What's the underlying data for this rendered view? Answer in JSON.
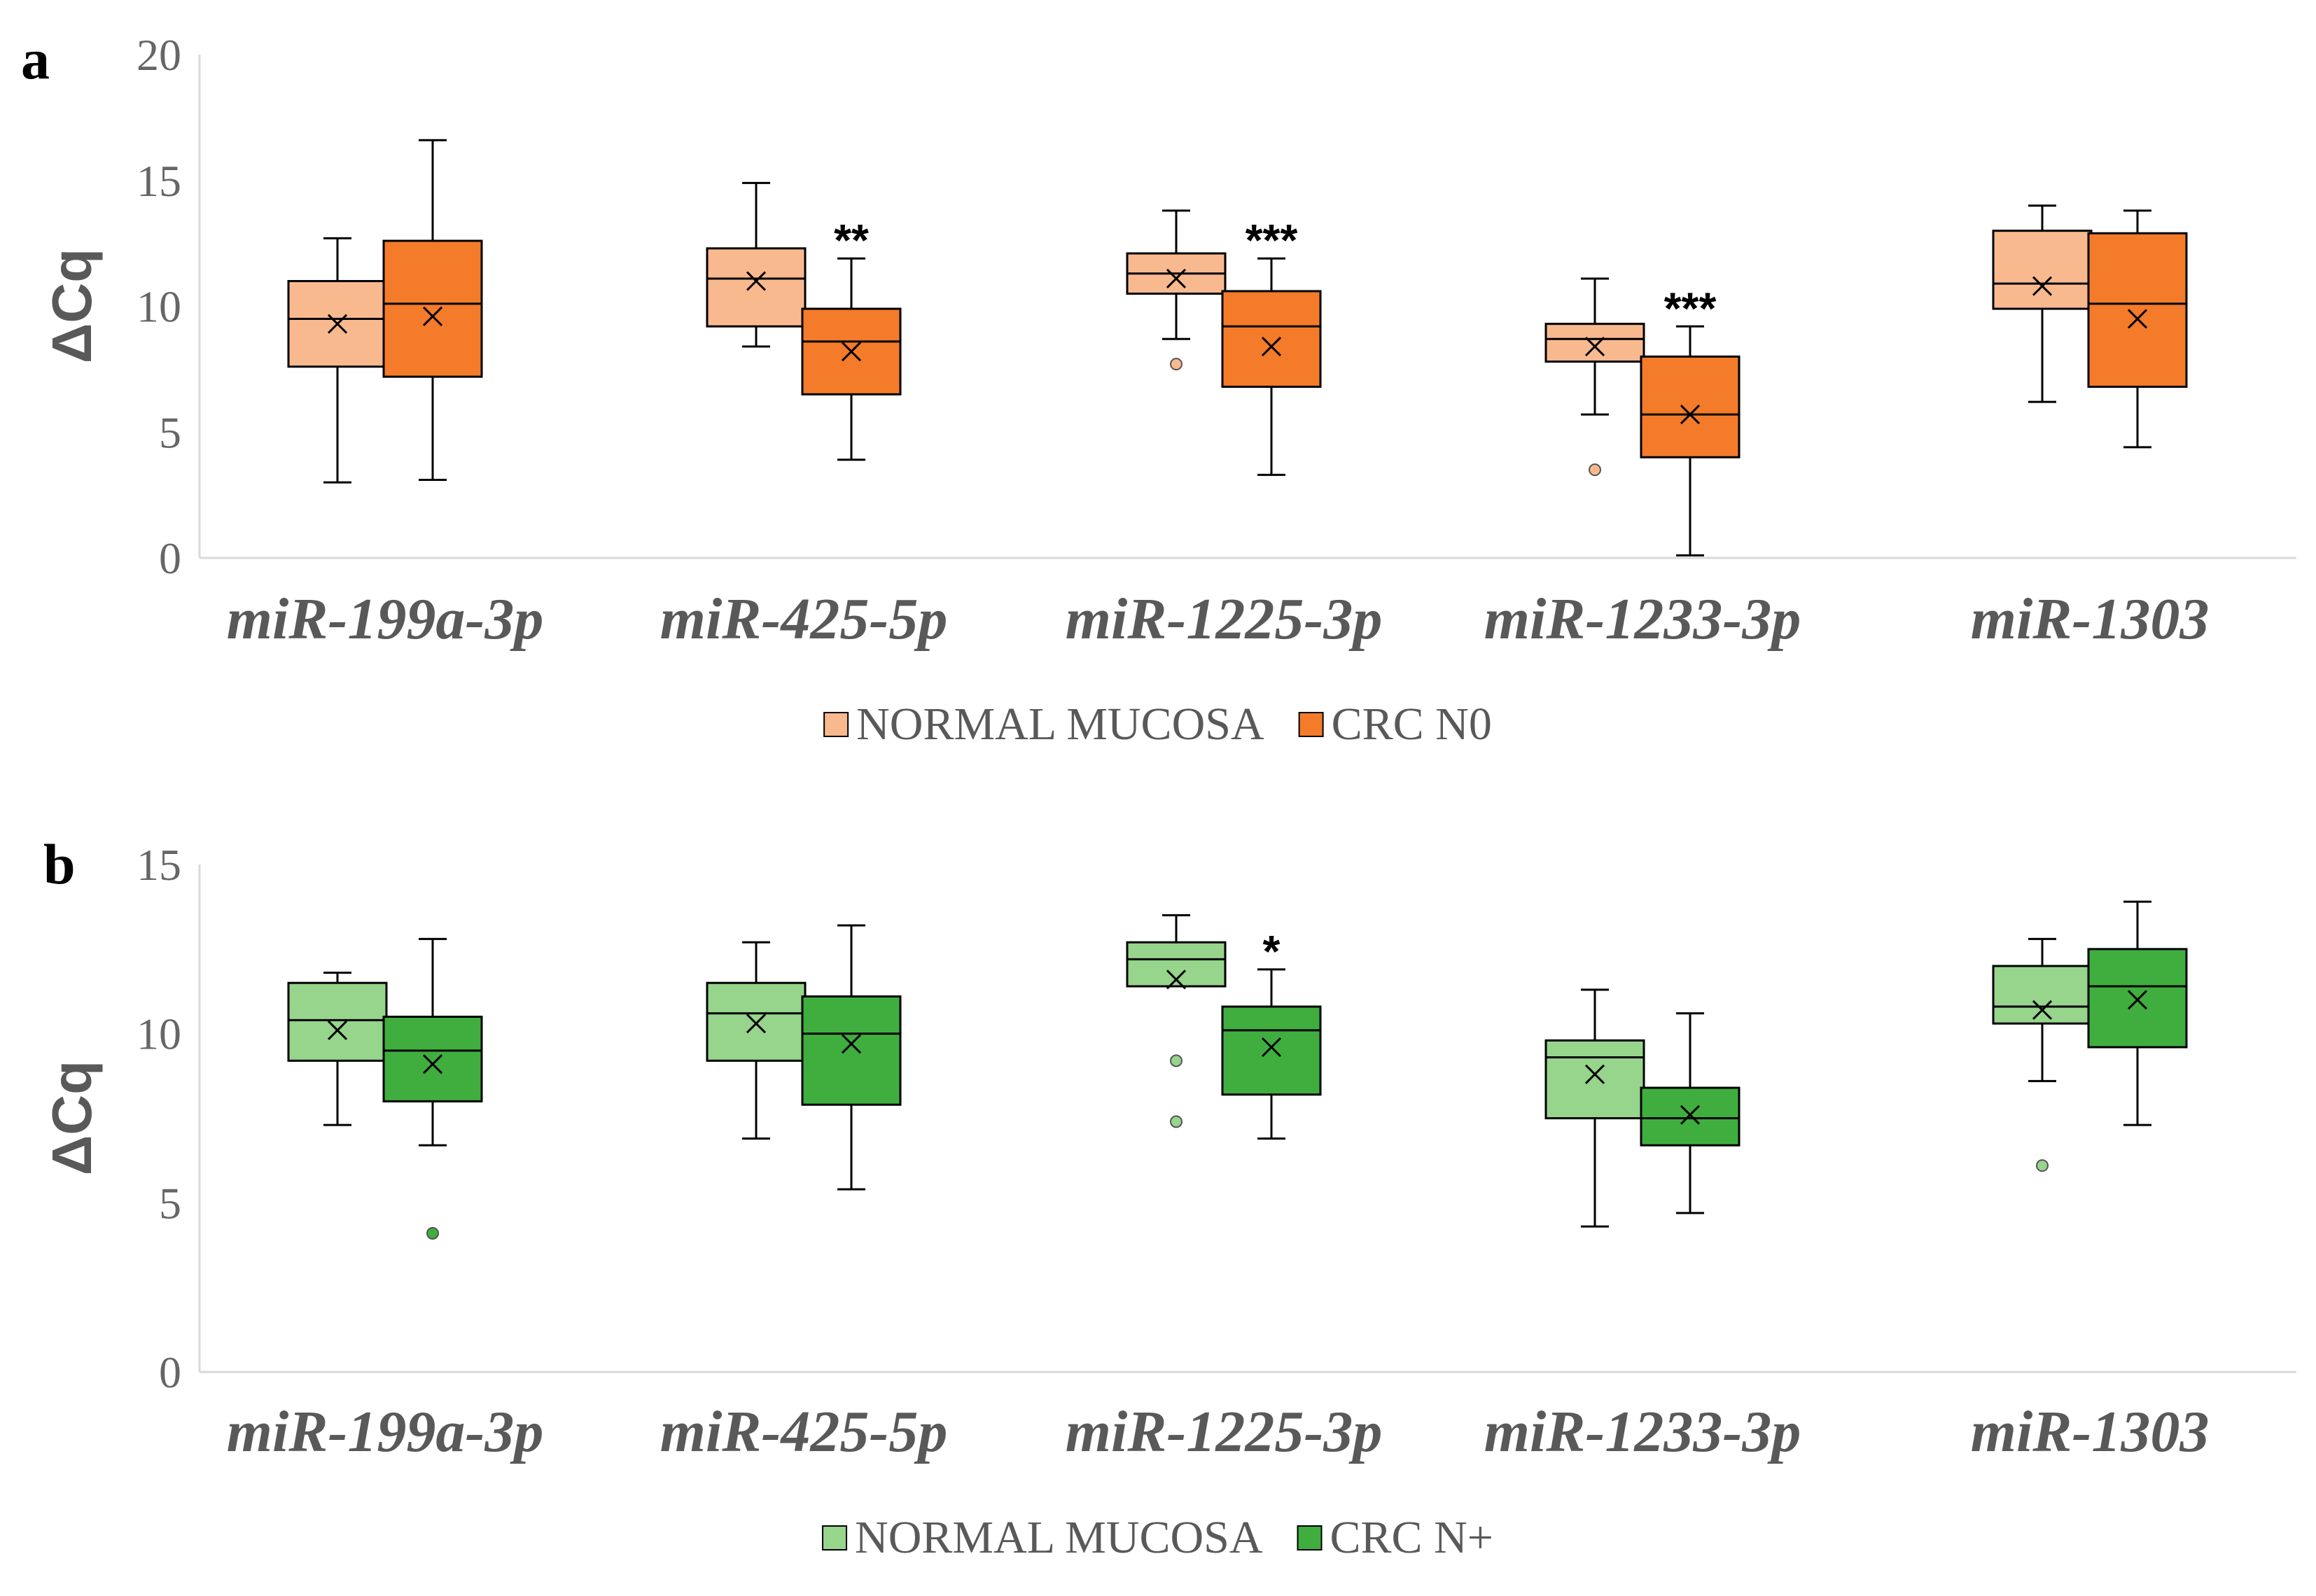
{
  "chart_data": [
    {
      "panel": "a",
      "type": "box",
      "ylabel": "ΔCq",
      "ylim": [
        0,
        20
      ],
      "yticks": [
        0,
        5,
        10,
        15,
        20
      ],
      "categories": [
        "miR-199a-3p",
        "miR-425-5p",
        "miR-1225-3p",
        "miR-1233-3p",
        "miR-1303"
      ],
      "legend": "bottom-center",
      "significance": [
        "",
        "**",
        "***",
        "***",
        ""
      ],
      "series": [
        {
          "name": "NORMAL MUCOSA",
          "color": "#F9B98F",
          "boxes": [
            {
              "min": 3.0,
              "q1": 7.6,
              "median": 9.5,
              "q3": 11.0,
              "max": 12.7,
              "mean": 9.3,
              "outliers": []
            },
            {
              "min": 8.4,
              "q1": 9.2,
              "median": 11.1,
              "q3": 12.3,
              "max": 14.9,
              "mean": 11.0,
              "outliers": []
            },
            {
              "min": 8.7,
              "q1": 10.5,
              "median": 11.3,
              "q3": 12.1,
              "max": 13.8,
              "mean": 11.1,
              "outliers": [
                7.7
              ]
            },
            {
              "min": 5.7,
              "q1": 7.8,
              "median": 8.7,
              "q3": 9.3,
              "max": 11.1,
              "mean": 8.4,
              "outliers": [
                3.5
              ]
            },
            {
              "min": 6.2,
              "q1": 9.9,
              "median": 10.9,
              "q3": 13.0,
              "max": 14.0,
              "mean": 10.8,
              "outliers": []
            }
          ]
        },
        {
          "name": "CRC N0",
          "color": "#F47B2A",
          "boxes": [
            {
              "min": 3.1,
              "q1": 7.2,
              "median": 10.1,
              "q3": 12.6,
              "max": 16.6,
              "mean": 9.6,
              "outliers": []
            },
            {
              "min": 3.9,
              "q1": 6.5,
              "median": 8.6,
              "q3": 9.9,
              "max": 11.9,
              "mean": 8.2,
              "outliers": []
            },
            {
              "min": 3.3,
              "q1": 6.8,
              "median": 9.2,
              "q3": 10.6,
              "max": 11.9,
              "mean": 8.4,
              "outliers": []
            },
            {
              "min": 0.1,
              "q1": 4.0,
              "median": 5.7,
              "q3": 8.0,
              "max": 9.2,
              "mean": 5.7,
              "outliers": []
            },
            {
              "min": 4.4,
              "q1": 6.8,
              "median": 10.1,
              "q3": 12.9,
              "max": 13.8,
              "mean": 9.5,
              "outliers": []
            }
          ]
        }
      ]
    },
    {
      "panel": "b",
      "type": "box",
      "ylabel": "ΔCq",
      "ylim": [
        0,
        15
      ],
      "yticks": [
        0,
        5,
        10,
        15
      ],
      "categories": [
        "miR-199a-3p",
        "miR-425-5p",
        "miR-1225-3p",
        "miR-1233-3p",
        "miR-1303"
      ],
      "legend": "bottom-center",
      "significance": [
        "",
        "",
        "*",
        "",
        ""
      ],
      "series": [
        {
          "name": "NORMAL MUCOSA",
          "color": "#96D58B",
          "boxes": [
            {
              "min": 7.3,
              "q1": 9.2,
              "median": 10.4,
              "q3": 11.5,
              "max": 11.8,
              "mean": 10.1,
              "outliers": []
            },
            {
              "min": 6.9,
              "q1": 9.2,
              "median": 10.6,
              "q3": 11.5,
              "max": 12.7,
              "mean": 10.3,
              "outliers": []
            },
            {
              "min": 11.4,
              "q1": 11.4,
              "median": 12.2,
              "q3": 12.7,
              "max": 13.5,
              "mean": 11.6,
              "outliers": [
                9.2,
                7.4
              ]
            },
            {
              "min": 4.3,
              "q1": 7.5,
              "median": 9.3,
              "q3": 9.8,
              "max": 11.3,
              "mean": 8.8,
              "outliers": []
            },
            {
              "min": 8.6,
              "q1": 10.3,
              "median": 10.8,
              "q3": 12.0,
              "max": 12.8,
              "mean": 10.7,
              "outliers": [
                6.1
              ]
            }
          ]
        },
        {
          "name": "CRC N+",
          "color": "#3FAE3F",
          "boxes": [
            {
              "min": 6.7,
              "q1": 8.0,
              "median": 9.5,
              "q3": 10.5,
              "max": 12.8,
              "mean": 9.1,
              "outliers": [
                4.1
              ]
            },
            {
              "min": 5.4,
              "q1": 7.9,
              "median": 10.0,
              "q3": 11.1,
              "max": 13.2,
              "mean": 9.7,
              "outliers": []
            },
            {
              "min": 6.9,
              "q1": 8.2,
              "median": 10.1,
              "q3": 10.8,
              "max": 11.9,
              "mean": 9.6,
              "outliers": []
            },
            {
              "min": 4.7,
              "q1": 6.7,
              "median": 7.5,
              "q3": 8.4,
              "max": 10.6,
              "mean": 7.6,
              "outliers": []
            },
            {
              "min": 7.3,
              "q1": 9.6,
              "median": 11.4,
              "q3": 12.5,
              "max": 13.9,
              "mean": 11.0,
              "outliers": []
            }
          ]
        }
      ]
    }
  ]
}
